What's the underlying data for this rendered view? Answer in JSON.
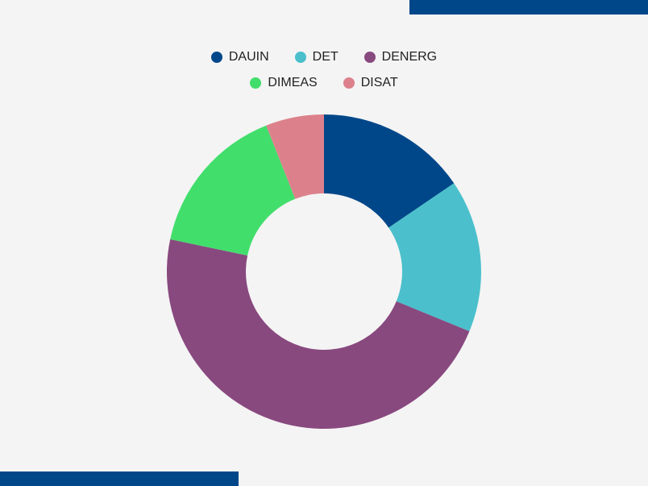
{
  "colors": {
    "accent": "#00478a",
    "background": "#f4f4f4"
  },
  "chart_data": {
    "type": "pie",
    "variant": "donut",
    "title": "",
    "legend_position": "top",
    "categories": [
      "DAUIN",
      "DET",
      "DENERG",
      "DIMEAS",
      "DISAT"
    ],
    "values": [
      15.5,
      15.7,
      47.1,
      15.7,
      6.0
    ],
    "colors": [
      "#00478a",
      "#4bc0cc",
      "#88497f",
      "#42de6c",
      "#dc818c"
    ]
  }
}
